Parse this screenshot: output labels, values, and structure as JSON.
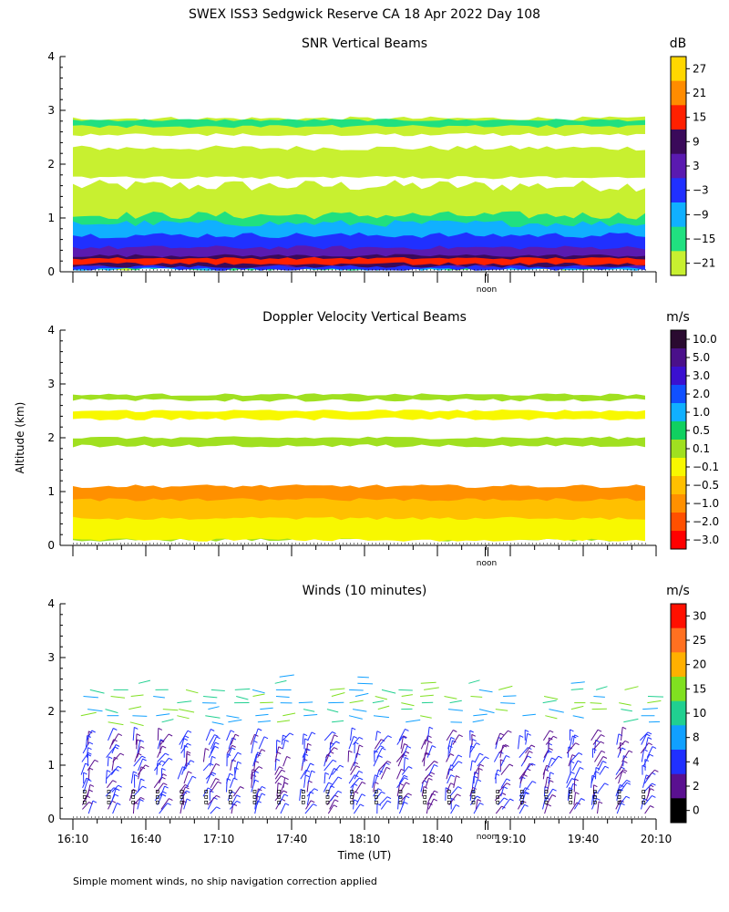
{
  "title": "SWEX ISS3 Sedgwick Reserve CA  18 Apr 2022 Day 108",
  "ylabel": "Altitude (km)",
  "xlabel": "Time (UT)",
  "note": "Simple moment winds, no ship navigation correction applied",
  "noon_label": "noon",
  "chart_data": [
    {
      "type": "heatmap",
      "title": "SNR Vertical Beams",
      "unit": "dB",
      "ylim": [
        0,
        4
      ],
      "yticks": [
        "0",
        "1",
        "2",
        "3",
        "4"
      ],
      "xlim": [
        "16:10",
        "20:10"
      ],
      "colorbar": {
        "labels": [
          "27",
          "21",
          "15",
          "9",
          "3",
          "−3",
          "−9",
          "−15",
          "−21"
        ],
        "colors": [
          "#ffd700",
          "#ff8c00",
          "#ff2000",
          "#3a0a5a",
          "#5a1ab0",
          "#2030ff",
          "#10b0ff",
          "#20e080",
          "#c8f030"
        ]
      },
      "layers": [
        {
          "level": "-21",
          "color": "#c8f030",
          "bands": [
            [
              0.05,
              1.6
            ],
            [
              1.75,
              2.3
            ],
            [
              2.55,
              2.85
            ]
          ]
        },
        {
          "level": "-15",
          "color": "#20e080",
          "bands": [
            [
              0.05,
              1.05
            ],
            [
              2.7,
              2.82
            ]
          ]
        },
        {
          "level": "-9",
          "color": "#10b0ff",
          "bands": [
            [
              0.05,
              0.9
            ]
          ]
        },
        {
          "level": "-3",
          "color": "#2030ff",
          "bands": [
            [
              0.05,
              0.68
            ]
          ]
        },
        {
          "level": "3",
          "color": "#5a1ab0",
          "bands": [
            [
              0.1,
              0.45
            ]
          ]
        },
        {
          "level": "9",
          "color": "#3a0a5a",
          "bands": [
            [
              0.1,
              0.3
            ]
          ]
        },
        {
          "level": "15",
          "color": "#ff2000",
          "bands": [
            [
              0.15,
              0.25
            ]
          ]
        }
      ]
    },
    {
      "type": "heatmap",
      "title": "Doppler Velocity Vertical Beams",
      "unit": "m/s",
      "ylim": [
        0,
        4
      ],
      "yticks": [
        "0",
        "1",
        "2",
        "3",
        "4"
      ],
      "xlim": [
        "16:10",
        "20:10"
      ],
      "colorbar": {
        "labels": [
          "10.0",
          "5.0",
          "3.0",
          "2.0",
          "1.0",
          "0.5",
          "0.1",
          "−0.1",
          "−0.5",
          "−1.0",
          "−2.0",
          "−3.0"
        ],
        "colors": [
          "#2a0a30",
          "#4a108a",
          "#3a10d0",
          "#1050ff",
          "#10b0ff",
          "#10d060",
          "#a0e020",
          "#f8f800",
          "#ffc000",
          "#ff9000",
          "#ff5000",
          "#ff0000"
        ]
      },
      "layers": [
        {
          "level": "0.1",
          "color": "#a0e020",
          "bands": [
            [
              0.1,
              1.0
            ],
            [
              1.85,
              2.0
            ],
            [
              2.7,
              2.8
            ]
          ]
        },
        {
          "level": "-0.1",
          "color": "#f8f800",
          "bands": [
            [
              0.1,
              0.7
            ],
            [
              2.35,
              2.5
            ]
          ]
        },
        {
          "level": "-0.5",
          "color": "#ffc000",
          "bands": [
            [
              0.5,
              0.95
            ]
          ]
        },
        {
          "level": "-1.0",
          "color": "#ff9000",
          "bands": [
            [
              0.85,
              1.1
            ]
          ]
        }
      ]
    },
    {
      "type": "scatter",
      "title": "Winds (10 minutes)",
      "unit": "m/s",
      "ylim": [
        0,
        4
      ],
      "yticks": [
        "0",
        "1",
        "2",
        "3",
        "4"
      ],
      "xlim": [
        "16:10",
        "20:10"
      ],
      "xticks": [
        "16:10",
        "16:40",
        "17:10",
        "17:40",
        "18:10",
        "18:40",
        "19:10",
        "19:40",
        "20:10"
      ],
      "colorbar": {
        "labels": [
          "30",
          "25",
          "20",
          "15",
          "10",
          "8",
          "4",
          "2",
          "0"
        ],
        "colors": [
          "#ff1000",
          "#ff7020",
          "#ffb000",
          "#80e020",
          "#20d090",
          "#10a0ff",
          "#2030ff",
          "#5a1090",
          "#000000"
        ]
      },
      "profiles_x": [
        "16:15",
        "16:25",
        "16:35",
        "16:45",
        "16:55",
        "17:05",
        "17:15",
        "17:25",
        "17:35",
        "17:45",
        "17:55",
        "18:05",
        "18:15",
        "18:25",
        "18:35",
        "18:45",
        "18:55",
        "19:05",
        "19:15",
        "19:25",
        "19:35",
        "19:45",
        "19:55",
        "20:05"
      ],
      "low_altitude_range": [
        0.1,
        1.5
      ],
      "low_altitude_speed_ms": "4-8",
      "upper_altitude_range": [
        1.8,
        3.2
      ],
      "upper_altitude_speed_ms": "10-20"
    }
  ]
}
